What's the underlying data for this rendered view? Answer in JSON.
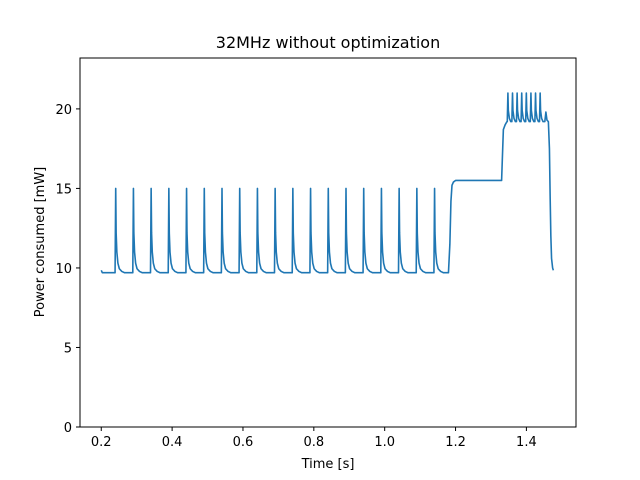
{
  "chart_data": {
    "type": "line",
    "title": "32MHz without optimization",
    "xlabel": "Time [s]",
    "ylabel": "Power consumed [mW]",
    "xlim": [
      0.14,
      1.54
    ],
    "ylim": [
      0,
      23.2
    ],
    "grid": false,
    "x_ticks": [
      0.2,
      0.4,
      0.6,
      0.8,
      1.0,
      1.2,
      1.4
    ],
    "x_tick_labels": [
      "0.2",
      "0.4",
      "0.6",
      "0.8",
      "1.0",
      "1.2",
      "1.4"
    ],
    "y_ticks": [
      0,
      5,
      10,
      15,
      20
    ],
    "y_tick_labels": [
      "0",
      "5",
      "10",
      "15",
      "20"
    ],
    "series_color": "#1f77b4",
    "baseline_mw": 9.7,
    "spike_peak_mw": 15.0,
    "spike_times_s": [
      0.24,
      0.29,
      0.34,
      0.39,
      0.44,
      0.49,
      0.54,
      0.59,
      0.64,
      0.69,
      0.74,
      0.79,
      0.84,
      0.89,
      0.94,
      0.99,
      1.04,
      1.09,
      1.14
    ],
    "series": [
      {
        "x": [
          0.2,
          0.205,
          0.239,
          0.2405,
          0.242,
          0.246,
          0.252,
          0.26,
          0.289,
          1.18,
          1.186,
          1.19,
          1.196,
          1.205,
          1.33,
          1.334,
          1.338,
          1.345,
          1.46,
          1.466,
          1.469,
          1.472,
          1.475
        ],
        "y": [
          9.8,
          9.7,
          9.7,
          14.9,
          11.5,
          10.3,
          9.9,
          9.75,
          9.7,
          9.7,
          13.8,
          15.3,
          15.45,
          15.5,
          15.5,
          18.2,
          19.0,
          19.2,
          19.2,
          16.0,
          12.0,
          10.2,
          9.9
        ]
      }
    ],
    "high_phase_spikes": {
      "times_s": [
        1.347,
        1.36,
        1.373,
        1.386,
        1.399,
        1.412,
        1.425,
        1.438
      ],
      "peak_mw": 21.0,
      "base_mw": 19.2
    }
  }
}
